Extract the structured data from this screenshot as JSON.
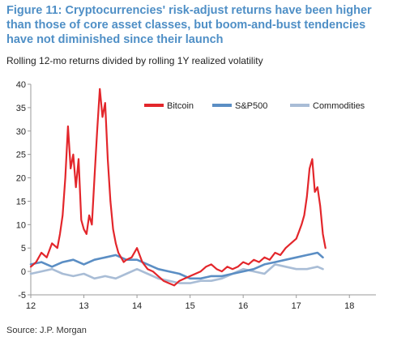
{
  "title": "Figure 11: Cryptocurrencies' risk-adjust returns have been higher than those of core asset classes, but boom-and-bust tendencies have not diminished since their launch",
  "subtitle": "Rolling 12-mo returns divided by rolling 1Y realized volatility",
  "source": "Source: J.P. Morgan",
  "colors": {
    "bitcoin": "#e3262b",
    "sp500": "#5b8ec4",
    "commodities": "#a9bdd6",
    "axis": "#9a9a9a"
  },
  "chart_data": {
    "type": "line",
    "title": "",
    "xlabel": "",
    "ylabel": "",
    "xlim": [
      12,
      18.5
    ],
    "ylim": [
      -5,
      40
    ],
    "xticks": [
      12,
      13,
      14,
      15,
      16,
      17,
      18
    ],
    "xtick_labels": [
      "12",
      "13",
      "14",
      "15",
      "16",
      "17",
      "18"
    ],
    "yticks": [
      -5,
      0,
      5,
      10,
      15,
      20,
      25,
      30,
      35,
      40
    ],
    "ytick_labels": [
      "-5",
      "0",
      "5",
      "10",
      "15",
      "20",
      "25",
      "30",
      "35",
      "40"
    ],
    "legend_position": "top",
    "grid": false,
    "series": [
      {
        "name": "Bitcoin",
        "color_key": "bitcoin",
        "x": [
          12.0,
          12.1,
          12.2,
          12.3,
          12.4,
          12.5,
          12.55,
          12.6,
          12.65,
          12.7,
          12.75,
          12.8,
          12.85,
          12.9,
          12.95,
          13.0,
          13.05,
          13.1,
          13.15,
          13.2,
          13.25,
          13.3,
          13.35,
          13.4,
          13.45,
          13.5,
          13.55,
          13.6,
          13.65,
          13.7,
          13.75,
          13.8,
          13.9,
          14.0,
          14.1,
          14.2,
          14.3,
          14.4,
          14.5,
          14.6,
          14.7,
          14.8,
          14.9,
          15.0,
          15.1,
          15.2,
          15.3,
          15.4,
          15.5,
          15.6,
          15.7,
          15.8,
          15.9,
          16.0,
          16.1,
          16.2,
          16.3,
          16.4,
          16.5,
          16.6,
          16.7,
          16.8,
          16.9,
          17.0,
          17.05,
          17.1,
          17.15,
          17.2,
          17.25,
          17.3,
          17.35,
          17.4,
          17.45,
          17.5,
          17.55
        ],
        "values": [
          1.0,
          2.0,
          4.0,
          3.0,
          6.0,
          5.0,
          8.0,
          12.0,
          20.0,
          31.0,
          22.0,
          25.0,
          18.0,
          24.0,
          11.0,
          9.0,
          8.0,
          12.0,
          10.0,
          20.0,
          30.0,
          39.0,
          33.0,
          36.0,
          24.0,
          15.0,
          9.0,
          6.0,
          4.0,
          3.0,
          2.0,
          2.5,
          3.0,
          5.0,
          2.0,
          0.5,
          0.0,
          -1.0,
          -2.0,
          -2.5,
          -3.0,
          -2.0,
          -1.5,
          -1.0,
          -0.5,
          0.0,
          1.0,
          1.5,
          0.5,
          0.0,
          1.0,
          0.5,
          1.0,
          2.0,
          1.5,
          2.5,
          2.0,
          3.0,
          2.5,
          4.0,
          3.5,
          5.0,
          6.0,
          7.0,
          8.5,
          10.0,
          12.0,
          16.0,
          22.0,
          24.0,
          17.0,
          18.0,
          14.0,
          8.0,
          5.0
        ]
      },
      {
        "name": "S&P500",
        "color_key": "sp500",
        "x": [
          12.0,
          12.2,
          12.4,
          12.6,
          12.8,
          13.0,
          13.2,
          13.4,
          13.6,
          13.8,
          14.0,
          14.2,
          14.4,
          14.6,
          14.8,
          15.0,
          15.2,
          15.4,
          15.6,
          15.8,
          16.0,
          16.2,
          16.4,
          16.6,
          16.8,
          17.0,
          17.2,
          17.4,
          17.5
        ],
        "values": [
          1.5,
          2.0,
          1.0,
          2.0,
          2.5,
          1.5,
          2.5,
          3.0,
          3.5,
          2.5,
          2.5,
          1.5,
          0.5,
          0.0,
          -0.5,
          -1.5,
          -1.5,
          -1.0,
          -1.0,
          -0.5,
          0.0,
          0.5,
          1.5,
          2.0,
          2.5,
          3.0,
          3.5,
          4.0,
          3.0
        ]
      },
      {
        "name": "Commodities",
        "color_key": "commodities",
        "x": [
          12.0,
          12.2,
          12.4,
          12.6,
          12.8,
          13.0,
          13.2,
          13.4,
          13.6,
          13.8,
          14.0,
          14.2,
          14.4,
          14.6,
          14.8,
          15.0,
          15.2,
          15.4,
          15.6,
          15.8,
          16.0,
          16.2,
          16.4,
          16.6,
          16.8,
          17.0,
          17.2,
          17.4,
          17.5
        ],
        "values": [
          -0.5,
          0.0,
          0.5,
          -0.5,
          -1.0,
          -0.5,
          -1.5,
          -1.0,
          -1.5,
          -0.5,
          0.5,
          -0.5,
          -1.5,
          -2.0,
          -2.5,
          -2.5,
          -2.0,
          -2.0,
          -1.5,
          -0.5,
          0.5,
          0.0,
          -0.5,
          1.5,
          1.0,
          0.5,
          0.5,
          1.0,
          0.5
        ]
      }
    ]
  }
}
